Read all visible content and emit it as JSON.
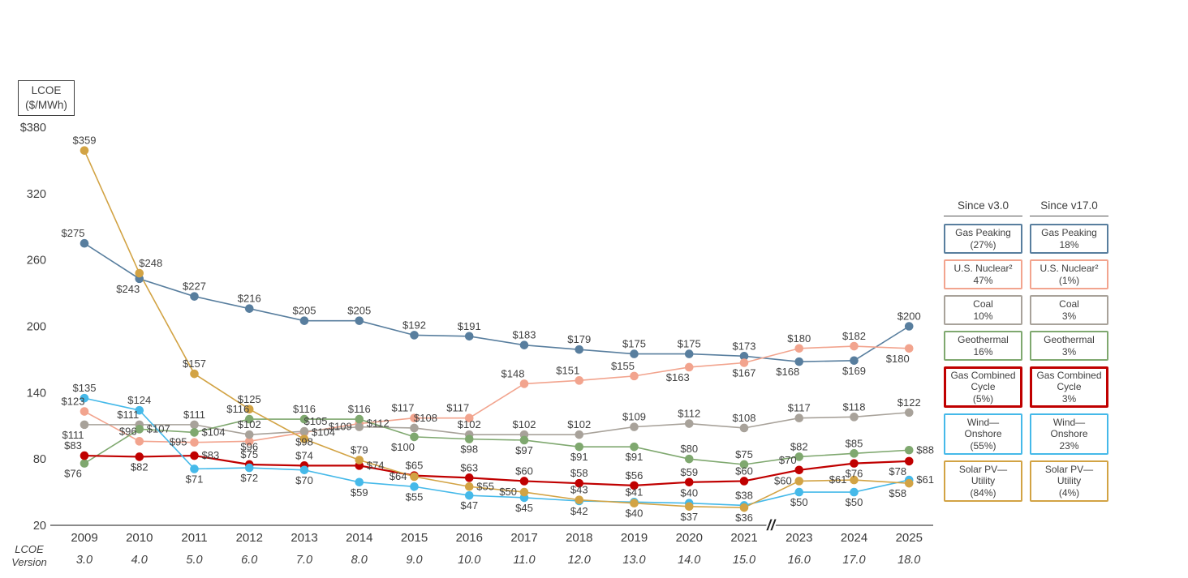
{
  "axis_title": {
    "line1": "LCOE",
    "line2": "($/MWh)"
  },
  "y_axis": {
    "tick_labels": [
      "$380",
      "320",
      "260",
      "200",
      "140",
      "80",
      "20"
    ],
    "tick_values": [
      380,
      320,
      260,
      200,
      140,
      80,
      20
    ]
  },
  "x_axis": {
    "version_label_line1": "LCOE",
    "version_label_line2": "Version",
    "break_symbol": "//",
    "years": [
      "2009",
      "2010",
      "2011",
      "2012",
      "2013",
      "2014",
      "2015",
      "2016",
      "2017",
      "2018",
      "2019",
      "2020",
      "2021",
      "2023",
      "2024",
      "2025"
    ],
    "versions": [
      "3.0",
      "4.0",
      "5.0",
      "6.0",
      "7.0",
      "8.0",
      "9.0",
      "10.0",
      "11.0",
      "12.0",
      "13.0",
      "14.0",
      "15.0",
      "16.0",
      "17.0",
      "18.0"
    ]
  },
  "chart_data": {
    "type": "line",
    "title": "",
    "ylabel": "LCOE ($/MWh)",
    "ylim": [
      20,
      380
    ],
    "grid": false,
    "point_label_prefix": "$",
    "categories": [
      "2009",
      "2010",
      "2011",
      "2012",
      "2013",
      "2014",
      "2015",
      "2016",
      "2017",
      "2018",
      "2019",
      "2020",
      "2021",
      "2023",
      "2024",
      "2025"
    ],
    "lcoe_versions": [
      "3.0",
      "4.0",
      "5.0",
      "6.0",
      "7.0",
      "8.0",
      "9.0",
      "10.0",
      "11.0",
      "12.0",
      "13.0",
      "14.0",
      "15.0",
      "16.0",
      "17.0",
      "18.0"
    ],
    "series": [
      {
        "name": "Gas Peaking",
        "color": "#587e9e",
        "values": [
          275,
          243,
          227,
          216,
          205,
          205,
          192,
          191,
          183,
          179,
          175,
          175,
          173,
          168,
          169,
          200
        ]
      },
      {
        "name": "U.S. Nuclear",
        "color": "#f2a48e",
        "values": [
          123,
          96,
          95,
          96,
          104,
          112,
          117,
          117,
          148,
          151,
          155,
          163,
          167,
          180,
          182,
          180
        ]
      },
      {
        "name": "Coal",
        "color": "#a8a29a",
        "values": [
          111,
          111,
          111,
          102,
          105,
          109,
          108,
          102,
          102,
          102,
          109,
          112,
          108,
          117,
          118,
          122
        ]
      },
      {
        "name": "Geothermal",
        "color": "#7fa86f",
        "values": [
          76,
          107,
          104,
          116,
          116,
          116,
          100,
          98,
          97,
          91,
          91,
          80,
          75,
          82,
          85,
          88
        ]
      },
      {
        "name": "Gas Combined Cycle",
        "color": "#c00000",
        "values": [
          83,
          82,
          83,
          75,
          74,
          74,
          65,
          63,
          60,
          58,
          56,
          59,
          60,
          70,
          76,
          78
        ]
      },
      {
        "name": "Wind—Onshore",
        "color": "#45b9e9",
        "values": [
          135,
          124,
          71,
          72,
          70,
          59,
          55,
          47,
          45,
          42,
          41,
          40,
          38,
          50,
          50,
          61
        ]
      },
      {
        "name": "Solar PV—Utility",
        "color": "#d2a344",
        "values": [
          359,
          248,
          157,
          125,
          98,
          79,
          64,
          55,
          50,
          43,
          40,
          37,
          36,
          60,
          61,
          58
        ]
      }
    ]
  },
  "legend": {
    "columns": [
      {
        "header": "Since v3.0",
        "items": [
          {
            "lines": [
              "Gas Peaking",
              "(27%)"
            ]
          },
          {
            "lines": [
              "U.S. Nuclear²",
              "47%"
            ]
          },
          {
            "lines": [
              "Coal",
              "10%"
            ]
          },
          {
            "lines": [
              "Geothermal",
              "16%"
            ]
          },
          {
            "lines": [
              "Gas Combined",
              "Cycle",
              "(5%)"
            ]
          },
          {
            "lines": [
              "Wind—",
              "Onshore",
              "(55%)"
            ]
          },
          {
            "lines": [
              "Solar PV—",
              "Utility",
              "(84%)"
            ]
          }
        ]
      },
      {
        "header": "Since v17.0",
        "items": [
          {
            "lines": [
              "Gas Peaking",
              "18%"
            ]
          },
          {
            "lines": [
              "U.S. Nuclear²",
              "(1%)"
            ]
          },
          {
            "lines": [
              "Coal",
              "3%"
            ]
          },
          {
            "lines": [
              "Geothermal",
              "3%"
            ]
          },
          {
            "lines": [
              "Gas Combined",
              "Cycle",
              "3%"
            ]
          },
          {
            "lines": [
              "Wind—",
              "Onshore",
              "23%"
            ]
          },
          {
            "lines": [
              "Solar PV—",
              "Utility",
              "(4%)"
            ]
          }
        ]
      }
    ]
  }
}
